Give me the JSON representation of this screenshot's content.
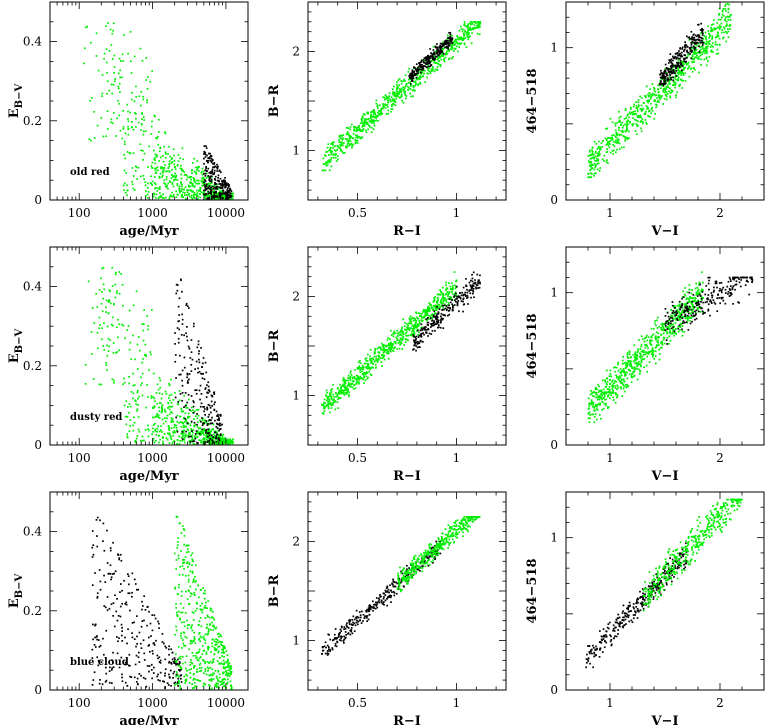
{
  "figure": {
    "green": "#00ee00",
    "black": "#000000"
  },
  "chart_data": [
    {
      "type": "scatter",
      "row": 0,
      "col": 0,
      "xlabel": "age/Myr",
      "ylabel": "E",
      "ylabel_sub": "B−V",
      "xscale": "log",
      "xlim": [
        40,
        20000
      ],
      "ylim": [
        0,
        0.5
      ],
      "xticks": [
        "100",
        "1000",
        "10000"
      ],
      "yticks": [
        "0",
        "0.2",
        "0.4"
      ],
      "annotation": "old red",
      "series": [
        {
          "color": "green",
          "dist": "agez",
          "n": 720,
          "seed": 101
        },
        {
          "color": "black",
          "dist": "agez",
          "n": 260,
          "seed": 102,
          "xr": [
            5000,
            12000
          ],
          "yr": [
            0,
            0.12
          ],
          "ymax": 0.13
        }
      ]
    },
    {
      "type": "scatter",
      "row": 0,
      "col": 1,
      "xlabel": "R−I",
      "ylabel": "B−R",
      "xscale": "linear",
      "xlim": [
        0.25,
        1.25
      ],
      "ylim": [
        0.5,
        2.5
      ],
      "xticks": [
        "0.5",
        "1"
      ],
      "yticks": [
        "1",
        "2"
      ],
      "series": [
        {
          "color": "green",
          "dist": "colour",
          "n": 720,
          "seed": 201,
          "xr": [
            0.32,
            1.12
          ],
          "a": 0.3,
          "b": 1.8,
          "sd": 0.1,
          "ylim": [
            0.8,
            2.3
          ]
        },
        {
          "color": "black",
          "dist": "colour",
          "n": 250,
          "seed": 202,
          "xr": [
            0.76,
            0.98
          ],
          "a": 0.31,
          "b": 1.87,
          "sd": 0.06,
          "ylim": [
            1.5,
            2.2
          ]
        }
      ]
    },
    {
      "type": "scatter",
      "row": 0,
      "col": 2,
      "xlabel": "V−I",
      "ylabel": "464−518",
      "xscale": "linear",
      "xlim": [
        0.6,
        2.4
      ],
      "ylim": [
        0,
        1.3
      ],
      "xticks": [
        "1",
        "2"
      ],
      "yticks": [
        "0",
        "1"
      ],
      "series": [
        {
          "color": "green",
          "dist": "colour",
          "n": 720,
          "seed": 301,
          "xr": [
            0.8,
            2.1
          ],
          "a": -0.38,
          "b": 0.75,
          "sd": 0.1,
          "ylim": [
            0.15,
            1.3
          ]
        },
        {
          "color": "black",
          "dist": "colour",
          "n": 250,
          "seed": 302,
          "xr": [
            1.45,
            1.85
          ],
          "a": -0.35,
          "b": 0.78,
          "sd": 0.07,
          "ylim": [
            0.6,
            1.2
          ]
        }
      ]
    },
    {
      "type": "scatter",
      "row": 1,
      "col": 0,
      "xlabel": "age/Myr",
      "ylabel": "E",
      "ylabel_sub": "B−V",
      "xscale": "log",
      "xlim": [
        40,
        20000
      ],
      "ylim": [
        0,
        0.5
      ],
      "xticks": [
        "100",
        "1000",
        "10000"
      ],
      "yticks": [
        "0",
        "0.2",
        "0.4"
      ],
      "annotation": "dusty red",
      "series": [
        {
          "color": "green",
          "dist": "agez",
          "n": 720,
          "seed": 111
        },
        {
          "color": "black",
          "dist": "agez",
          "n": 250,
          "seed": 112,
          "xr": [
            2000,
            9000
          ],
          "yr": [
            0,
            0.45
          ],
          "ymax": 0.46
        }
      ]
    },
    {
      "type": "scatter",
      "row": 1,
      "col": 1,
      "xlabel": "R−I",
      "ylabel": "B−R",
      "xscale": "linear",
      "xlim": [
        0.25,
        1.25
      ],
      "ylim": [
        0.5,
        2.5
      ],
      "xticks": [
        "0.5",
        "1"
      ],
      "yticks": [
        "1",
        "2"
      ],
      "series": [
        {
          "color": "green",
          "dist": "colour",
          "n": 720,
          "seed": 211,
          "xr": [
            0.32,
            1.0
          ],
          "a": 0.3,
          "b": 1.8,
          "sd": 0.1,
          "ylim": [
            0.8,
            2.25
          ]
        },
        {
          "color": "black",
          "dist": "colour",
          "n": 250,
          "seed": 212,
          "xr": [
            0.78,
            1.12
          ],
          "a": 0.05,
          "b": 1.9,
          "sd": 0.1,
          "ylim": [
            1.4,
            2.25
          ]
        }
      ]
    },
    {
      "type": "scatter",
      "row": 1,
      "col": 2,
      "xlabel": "V−I",
      "ylabel": "464−518",
      "xscale": "linear",
      "xlim": [
        0.6,
        2.4
      ],
      "ylim": [
        0,
        1.3
      ],
      "xticks": [
        "1",
        "2"
      ],
      "yticks": [
        "0",
        "1"
      ],
      "series": [
        {
          "color": "green",
          "dist": "colour",
          "n": 720,
          "seed": 311,
          "xr": [
            0.8,
            1.85
          ],
          "a": -0.38,
          "b": 0.75,
          "sd": 0.1,
          "ylim": [
            0.15,
            1.25
          ]
        },
        {
          "color": "black",
          "dist": "colour",
          "n": 250,
          "seed": 312,
          "xr": [
            1.5,
            2.3
          ],
          "a": 0.2,
          "b": 0.4,
          "sd": 0.1,
          "ylim": [
            0.55,
            1.1
          ]
        }
      ]
    },
    {
      "type": "scatter",
      "row": 2,
      "col": 0,
      "xlabel": "age/Myr",
      "ylabel": "E",
      "ylabel_sub": "B−V",
      "xscale": "log",
      "xlim": [
        40,
        20000
      ],
      "ylim": [
        0,
        0.5
      ],
      "xticks": [
        "100",
        "1000",
        "10000"
      ],
      "yticks": [
        "0",
        "0.2",
        "0.4"
      ],
      "annotation": "blue cloud",
      "series": [
        {
          "color": "black",
          "dist": "agez",
          "n": 300,
          "seed": 121,
          "xr": [
            150,
            2500
          ],
          "yr": [
            0,
            0.46
          ],
          "ymax": 0.47
        },
        {
          "color": "green",
          "dist": "agez",
          "n": 520,
          "seed": 122,
          "xr": [
            2000,
            12000
          ],
          "yr": [
            0,
            0.45
          ],
          "ymax": 0.46
        }
      ]
    },
    {
      "type": "scatter",
      "row": 2,
      "col": 1,
      "xlabel": "R−I",
      "ylabel": "B−R",
      "xscale": "linear",
      "xlim": [
        0.25,
        1.25
      ],
      "ylim": [
        0.5,
        2.5
      ],
      "xticks": [
        "0.5",
        "1"
      ],
      "yticks": [
        "1",
        "2"
      ],
      "series": [
        {
          "color": "black",
          "dist": "colour",
          "n": 330,
          "seed": 221,
          "xr": [
            0.32,
            0.92
          ],
          "a": 0.3,
          "b": 1.8,
          "sd": 0.08,
          "ylim": [
            0.8,
            2.0
          ]
        },
        {
          "color": "green",
          "dist": "colour",
          "n": 420,
          "seed": 222,
          "xr": [
            0.7,
            1.12
          ],
          "a": 0.32,
          "b": 1.8,
          "sd": 0.09,
          "ylim": [
            1.4,
            2.25
          ]
        }
      ]
    },
    {
      "type": "scatter",
      "row": 2,
      "col": 2,
      "xlabel": "V−I",
      "ylabel": "464−518",
      "xscale": "linear",
      "xlim": [
        0.6,
        2.4
      ],
      "ylim": [
        0,
        1.3
      ],
      "xticks": [
        "1",
        "2"
      ],
      "yticks": [
        "0",
        "1"
      ],
      "series": [
        {
          "color": "black",
          "dist": "colour",
          "n": 330,
          "seed": 321,
          "xr": [
            0.78,
            1.7
          ],
          "a": -0.38,
          "b": 0.75,
          "sd": 0.07,
          "ylim": [
            0.15,
            1.0
          ]
        },
        {
          "color": "green",
          "dist": "colour",
          "n": 420,
          "seed": 322,
          "xr": [
            1.3,
            2.2
          ],
          "a": -0.38,
          "b": 0.76,
          "sd": 0.09,
          "ylim": [
            0.5,
            1.25
          ]
        }
      ]
    }
  ]
}
